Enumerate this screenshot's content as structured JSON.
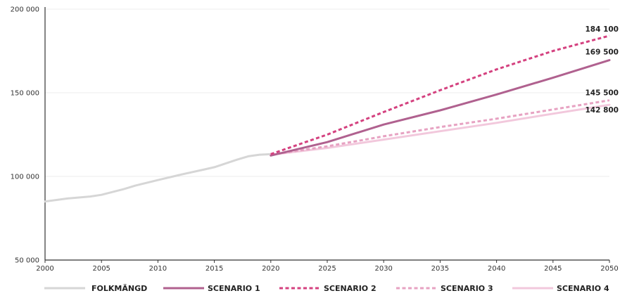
{
  "chart_data": {
    "type": "line",
    "x_ticks": [
      2000,
      2005,
      2010,
      2015,
      2020,
      2025,
      2030,
      2035,
      2040,
      2045,
      2050
    ],
    "y_ticks": [
      {
        "value": 50000,
        "label": "50 000"
      },
      {
        "value": 100000,
        "label": "100 000"
      },
      {
        "value": 150000,
        "label": "150 000"
      },
      {
        "value": 200000,
        "label": "200 000"
      }
    ],
    "xlim": [
      2000,
      2050
    ],
    "ylim": [
      50000,
      200000
    ],
    "grid": "horizontal",
    "legend_position": "bottom",
    "series": [
      {
        "name": "FOLKMÄNGD",
        "color": "#d6d6d6",
        "dash": "solid",
        "x": [
          2000,
          2002,
          2004,
          2005,
          2007,
          2008,
          2010,
          2012,
          2014,
          2015,
          2017,
          2018,
          2019,
          2020
        ],
        "y": [
          85000,
          86800,
          88000,
          89000,
          92500,
          94500,
          97800,
          101000,
          104000,
          105500,
          110000,
          112000,
          113000,
          113300
        ]
      },
      {
        "name": "SCENARIO 1",
        "color": "#b0618f",
        "dash": "solid",
        "x": [
          2020,
          2025,
          2030,
          2035,
          2040,
          2045,
          2050
        ],
        "y": [
          112500,
          120500,
          131000,
          139500,
          149000,
          159000,
          169500
        ]
      },
      {
        "name": "SCENARIO 2",
        "color": "#d4417f",
        "dash": "dashed",
        "x": [
          2020,
          2025,
          2030,
          2035,
          2040,
          2045,
          2050
        ],
        "y": [
          113300,
          125000,
          138500,
          151500,
          164000,
          175000,
          184100
        ]
      },
      {
        "name": "SCENARIO 3",
        "color": "#e7a2c2",
        "dash": "dashed",
        "x": [
          2020,
          2025,
          2030,
          2035,
          2040,
          2045,
          2050
        ],
        "y": [
          113000,
          118000,
          124000,
          129500,
          134500,
          140000,
          145500
        ]
      },
      {
        "name": "SCENARIO 4",
        "color": "#f2c8dc",
        "dash": "solid",
        "x": [
          2020,
          2025,
          2030,
          2035,
          2040,
          2045,
          2050
        ],
        "y": [
          113000,
          117000,
          122000,
          127000,
          132000,
          137500,
          142800
        ]
      }
    ],
    "end_labels": [
      {
        "series": "SCENARIO 2",
        "value": 184100,
        "text": "184 100"
      },
      {
        "series": "SCENARIO 1",
        "value": 169500,
        "text": "169 500"
      },
      {
        "series": "SCENARIO 3",
        "value": 145500,
        "text": "145 500"
      },
      {
        "series": "SCENARIO 4",
        "value": 142800,
        "text": "142 800"
      }
    ]
  }
}
